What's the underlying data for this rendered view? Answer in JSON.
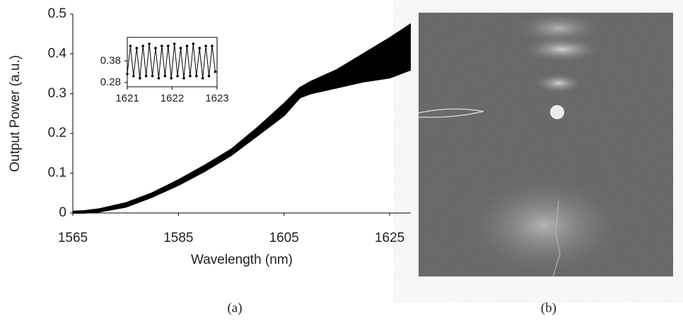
{
  "chart_data": [
    {
      "type": "band",
      "x_label": "Wavelength (nm)",
      "y_label": "Output Power (a.u.)",
      "x": [
        1565,
        1567,
        1570,
        1575,
        1580,
        1585,
        1590,
        1595,
        1600,
        1605,
        1608,
        1610,
        1615,
        1620,
        1625,
        1629
      ],
      "series": [
        {
          "color": "#000000",
          "values": [
            0,
            0,
            0.003,
            0.015,
            0.04,
            0.07,
            0.105,
            0.145,
            0.195,
            0.245,
            0.29,
            0.3,
            0.315,
            0.33,
            0.34,
            0.36
          ]
        },
        {
          "color": "#000000",
          "values": [
            0.004,
            0.005,
            0.01,
            0.025,
            0.05,
            0.083,
            0.12,
            0.16,
            0.215,
            0.275,
            0.315,
            0.33,
            0.36,
            0.4,
            0.44,
            0.475
          ]
        }
      ],
      "xlim": [
        1565,
        1629
      ],
      "ylim": [
        0,
        0.5
      ],
      "xticks": [
        1565,
        1585,
        1605,
        1625
      ],
      "yticks": [
        0,
        0.1,
        0.2,
        0.3,
        0.4,
        0.5
      ],
      "grid": false
    },
    {
      "type": "line",
      "x": [
        1621,
        1621.07,
        1621.14,
        1621.21,
        1621.28,
        1621.35,
        1621.42,
        1621.49,
        1621.56,
        1621.63,
        1621.7,
        1621.77,
        1621.84,
        1621.91,
        1621.98,
        1622.05,
        1622.12,
        1622.19,
        1622.26,
        1622.33,
        1622.4,
        1622.47,
        1622.54,
        1622.61,
        1622.68,
        1622.75,
        1622.82,
        1622.89,
        1622.96
      ],
      "series": [
        {
          "color": "#000000",
          "values": [
            0.32,
            0.45,
            0.31,
            0.44,
            0.3,
            0.45,
            0.31,
            0.46,
            0.31,
            0.44,
            0.3,
            0.45,
            0.31,
            0.45,
            0.3,
            0.46,
            0.31,
            0.44,
            0.3,
            0.45,
            0.31,
            0.46,
            0.31,
            0.44,
            0.3,
            0.45,
            0.31,
            0.45,
            0.33
          ]
        }
      ],
      "xlim": [
        1621,
        1623
      ],
      "ylim": [
        0.26,
        0.49
      ],
      "xticks": [
        1621,
        1622,
        1623
      ],
      "yticks": [
        0.38,
        0.28
      ],
      "grid": false
    }
  ],
  "captions": [
    "(a)",
    "(b)"
  ]
}
